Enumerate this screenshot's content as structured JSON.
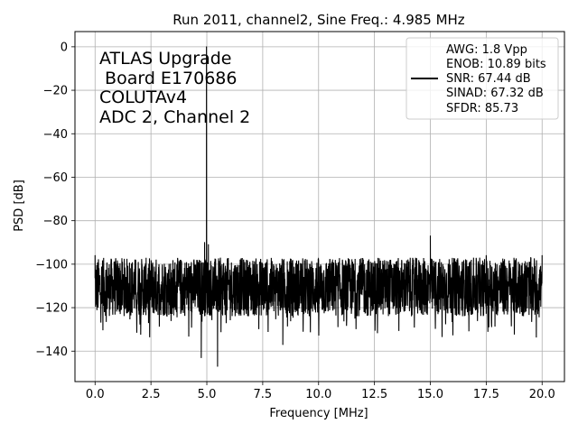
{
  "chart_data": {
    "type": "line",
    "title": "Run 2011, channel2, Sine Freq.: 4.985 MHz",
    "xlabel": "Frequency [MHz]",
    "ylabel": "PSD [dB]",
    "xlim": [
      -0.9,
      21.0
    ],
    "ylim": [
      -154,
      7
    ],
    "xticks": [
      0.0,
      2.5,
      5.0,
      7.5,
      10.0,
      12.5,
      15.0,
      17.5,
      20.0
    ],
    "xtick_labels": [
      "0.0",
      "2.5",
      "5.0",
      "7.5",
      "10.0",
      "12.5",
      "15.0",
      "17.5",
      "20.0"
    ],
    "yticks": [
      0,
      -20,
      -40,
      -60,
      -80,
      -100,
      -120,
      -140
    ],
    "ytick_labels": [
      "0",
      "−20",
      "−40",
      "−60",
      "−80",
      "−100",
      "−120",
      "−140"
    ],
    "grid": true,
    "legend_position": "upper right",
    "annotation_lines": [
      "ATLAS Upgrade",
      " Board E170686",
      "COLUTAv4",
      "ADC 2, Channel 2"
    ],
    "legend_lines": [
      "AWG: 1.8 Vpp",
      "ENOB: 10.89 bits",
      "SNR: 67.44 dB",
      "SINAD: 67.32 dB",
      "SFDR: 85.73"
    ],
    "series": [
      {
        "color": "#000000",
        "noise_floor_db": [
          -124,
          -97
        ],
        "x": [
          0.0,
          0.3,
          0.6,
          1.0,
          1.4,
          1.8,
          2.2,
          2.6,
          3.0,
          3.4,
          3.8,
          4.2,
          4.6,
          4.75,
          4.9,
          4.985,
          5.07,
          5.2,
          5.4,
          5.48,
          5.6,
          6.0,
          6.5,
          7.0,
          7.5,
          8.0,
          8.4,
          8.8,
          9.2,
          9.6,
          10.0,
          10.5,
          11.0,
          11.5,
          12.0,
          12.5,
          13.0,
          13.5,
          14.0,
          14.5,
          15.0,
          15.5,
          16.0,
          16.5,
          17.0,
          17.5,
          18.0,
          18.5,
          19.0,
          19.5,
          20.0
        ],
        "y": [
          -96,
          -118,
          -110,
          -100,
          -115,
          -98,
          -122,
          -106,
          -102,
          -126,
          -104,
          -118,
          -100,
          -143,
          -90,
          0,
          -91,
          -106,
          -110,
          -147,
          -100,
          -116,
          -104,
          -120,
          -100,
          -118,
          -137,
          -104,
          -116,
          -100,
          -122,
          -98,
          -112,
          -120,
          -98,
          -116,
          -104,
          -120,
          -98,
          -110,
          -87,
          -104,
          -120,
          -100,
          -118,
          -96,
          -122,
          -106,
          -100,
          -118,
          -96
        ]
      }
    ]
  }
}
